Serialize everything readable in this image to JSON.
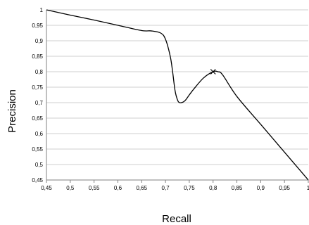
{
  "chart_data": {
    "type": "line",
    "title": "",
    "xlabel": "Recall",
    "ylabel": "Precision",
    "xlim": [
      0.45,
      1
    ],
    "ylim": [
      0.45,
      1
    ],
    "grid": true,
    "x_ticks": [
      "0,45",
      "0,5",
      "0,55",
      "0,6",
      "0,65",
      "0,7",
      "0,75",
      "0,8",
      "0,85",
      "0,9",
      "0,95",
      "1"
    ],
    "y_ticks": [
      "0,45",
      "0,5",
      "0,55",
      "0,6",
      "0,65",
      "0,7",
      "0,75",
      "0,8",
      "0,85",
      "0,9",
      "0,95",
      "1"
    ],
    "series": [
      {
        "x": [
          0.45,
          0.5,
          0.55,
          0.6,
          0.65,
          0.67,
          0.69,
          0.7,
          0.71,
          0.715,
          0.72,
          0.725,
          0.73,
          0.74,
          0.75,
          0.76,
          0.78,
          0.8,
          0.81,
          0.82,
          0.85,
          0.9,
          0.95,
          1.0
        ],
        "y": [
          1.0,
          0.983,
          0.967,
          0.95,
          0.933,
          0.932,
          0.925,
          0.905,
          0.85,
          0.8,
          0.74,
          0.71,
          0.7,
          0.705,
          0.725,
          0.745,
          0.78,
          0.8,
          0.8,
          0.79,
          0.72,
          0.63,
          0.54,
          0.45
        ]
      }
    ],
    "markers": [
      {
        "x": 0.8,
        "y": 0.8,
        "symbol": "x"
      }
    ],
    "colors": {
      "line": "#000000",
      "grid": "#bfbfbf",
      "axis": "#808080"
    }
  }
}
